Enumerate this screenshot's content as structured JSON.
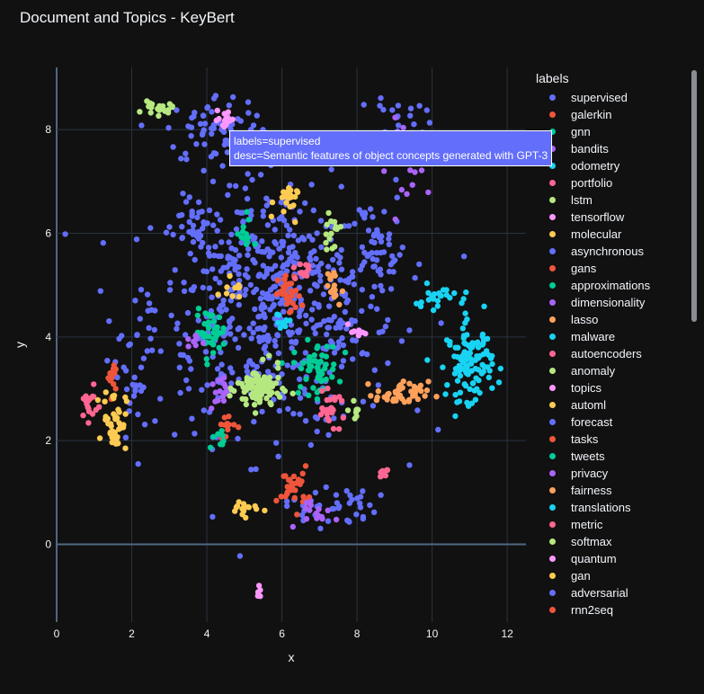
{
  "title": "Document and Topics - KeyBert",
  "legend_title": "labels",
  "tooltip": {
    "line1": "labels=supervised",
    "line2": "desc=Semantic features of object concepts generated with GPT-3"
  },
  "chart_data": {
    "type": "scatter",
    "title": "Document and Topics - KeyBert",
    "xlabel": "x",
    "ylabel": "y",
    "xlim": [
      0,
      12.5
    ],
    "ylim": [
      -1.5,
      9.2
    ],
    "xticks": [
      0,
      2,
      4,
      6,
      8,
      10,
      12
    ],
    "yticks": [
      0,
      2,
      4,
      6,
      8
    ],
    "grid": true,
    "legend_position": "right",
    "series": [
      {
        "name": "supervised",
        "color": "#636efa"
      },
      {
        "name": "galerkin",
        "color": "#ef553b"
      },
      {
        "name": "gnn",
        "color": "#00cc96"
      },
      {
        "name": "bandits",
        "color": "#ab63fa"
      },
      {
        "name": "odometry",
        "color": "#19d3f3"
      },
      {
        "name": "portfolio",
        "color": "#ff6692"
      },
      {
        "name": "lstm",
        "color": "#b6e880"
      },
      {
        "name": "tensorflow",
        "color": "#ff97ff"
      },
      {
        "name": "molecular",
        "color": "#fecb52"
      },
      {
        "name": "asynchronous",
        "color": "#636efa"
      },
      {
        "name": "gans",
        "color": "#ef553b"
      },
      {
        "name": "approximations",
        "color": "#00cc96"
      },
      {
        "name": "dimensionality",
        "color": "#ab63fa"
      },
      {
        "name": "lasso",
        "color": "#ffa15a"
      },
      {
        "name": "malware",
        "color": "#19d3f3"
      },
      {
        "name": "autoencoders",
        "color": "#ff6692"
      },
      {
        "name": "anomaly",
        "color": "#b6e880"
      },
      {
        "name": "topics",
        "color": "#ff97ff"
      },
      {
        "name": "automl",
        "color": "#fecb52"
      },
      {
        "name": "forecast",
        "color": "#636efa"
      },
      {
        "name": "tasks",
        "color": "#ef553b"
      },
      {
        "name": "tweets",
        "color": "#00cc96"
      },
      {
        "name": "privacy",
        "color": "#ab63fa"
      },
      {
        "name": "fairness",
        "color": "#ffa15a"
      },
      {
        "name": "translations",
        "color": "#19d3f3"
      },
      {
        "name": "metric",
        "color": "#ff6692"
      },
      {
        "name": "softmax",
        "color": "#b6e880"
      },
      {
        "name": "quantum",
        "color": "#ff97ff"
      },
      {
        "name": "gan",
        "color": "#fecb52"
      },
      {
        "name": "adversarial",
        "color": "#636efa"
      },
      {
        "name": "rnn2seq",
        "color": "#ef553b"
      }
    ],
    "clusters": [
      {
        "label": "supervised",
        "cx": 5.8,
        "cy": 4.6,
        "sx": 1.6,
        "sy": 1.2,
        "n": 620
      },
      {
        "label": "supervised",
        "cx": 4.3,
        "cy": 8.0,
        "sx": 0.7,
        "sy": 0.35,
        "n": 70
      },
      {
        "label": "supervised",
        "cx": 9.1,
        "cy": 8.1,
        "sx": 0.35,
        "sy": 0.35,
        "n": 40
      },
      {
        "label": "supervised",
        "cx": 8.5,
        "cy": 5.6,
        "sx": 0.35,
        "sy": 0.35,
        "n": 35
      },
      {
        "label": "supervised",
        "cx": 3.7,
        "cy": 6.0,
        "sx": 0.2,
        "sy": 0.4,
        "n": 30
      },
      {
        "label": "supervised",
        "cx": 7.3,
        "cy": 0.75,
        "sx": 0.6,
        "sy": 0.2,
        "n": 40
      },
      {
        "label": "supervised",
        "cx": 2.0,
        "cy": 3.2,
        "sx": 0.3,
        "sy": 0.8,
        "n": 30
      },
      {
        "label": "galerkin",
        "cx": 6.2,
        "cy": 4.8,
        "sx": 0.15,
        "sy": 0.2,
        "n": 35
      },
      {
        "label": "galerkin",
        "cx": 6.3,
        "cy": 1.1,
        "sx": 0.2,
        "sy": 0.2,
        "n": 30
      },
      {
        "label": "galerkin",
        "cx": 1.5,
        "cy": 3.2,
        "sx": 0.07,
        "sy": 0.18,
        "n": 12
      },
      {
        "label": "gnn",
        "cx": 6.9,
        "cy": 3.4,
        "sx": 0.3,
        "sy": 0.25,
        "n": 55
      },
      {
        "label": "gnn",
        "cx": 4.1,
        "cy": 4.1,
        "sx": 0.2,
        "sy": 0.2,
        "n": 40
      },
      {
        "label": "bandits",
        "cx": 9.5,
        "cy": 7.4,
        "sx": 0.35,
        "sy": 0.4,
        "n": 25
      },
      {
        "label": "bandits",
        "cx": 7.0,
        "cy": 0.6,
        "sx": 0.25,
        "sy": 0.15,
        "n": 15
      },
      {
        "label": "odometry",
        "cx": 11.0,
        "cy": 3.5,
        "sx": 0.3,
        "sy": 0.35,
        "n": 110
      },
      {
        "label": "odometry",
        "cx": 10.3,
        "cy": 4.7,
        "sx": 0.4,
        "sy": 0.15,
        "n": 25
      },
      {
        "label": "odometry",
        "cx": 6.0,
        "cy": 4.3,
        "sx": 0.12,
        "sy": 0.12,
        "n": 10
      },
      {
        "label": "portfolio",
        "cx": 0.85,
        "cy": 2.7,
        "sx": 0.12,
        "sy": 0.15,
        "n": 18
      },
      {
        "label": "portfolio",
        "cx": 8.7,
        "cy": 1.4,
        "sx": 0.08,
        "sy": 0.1,
        "n": 8
      },
      {
        "label": "portfolio",
        "cx": 7.3,
        "cy": 2.6,
        "sx": 0.2,
        "sy": 0.15,
        "n": 25
      },
      {
        "label": "lstm",
        "cx": 5.4,
        "cy": 3.0,
        "sx": 0.3,
        "sy": 0.22,
        "n": 90
      },
      {
        "label": "lstm",
        "cx": 2.7,
        "cy": 8.4,
        "sx": 0.2,
        "sy": 0.06,
        "n": 20
      },
      {
        "label": "lstm",
        "cx": 7.3,
        "cy": 6.0,
        "sx": 0.12,
        "sy": 0.15,
        "n": 15
      },
      {
        "label": "tensorflow",
        "cx": 4.5,
        "cy": 8.2,
        "sx": 0.18,
        "sy": 0.1,
        "n": 15
      },
      {
        "label": "tensorflow",
        "cx": 5.4,
        "cy": -0.85,
        "sx": 0.03,
        "sy": 0.1,
        "n": 5
      },
      {
        "label": "molecular",
        "cx": 1.55,
        "cy": 2.4,
        "sx": 0.15,
        "sy": 0.3,
        "n": 45
      },
      {
        "label": "molecular",
        "cx": 5.0,
        "cy": 0.7,
        "sx": 0.25,
        "sy": 0.08,
        "n": 15
      },
      {
        "label": "molecular",
        "cx": 6.1,
        "cy": 6.6,
        "sx": 0.15,
        "sy": 0.18,
        "n": 20
      },
      {
        "label": "gans",
        "cx": 4.5,
        "cy": 2.3,
        "sx": 0.12,
        "sy": 0.15,
        "n": 12
      },
      {
        "label": "approximations",
        "cx": 5.0,
        "cy": 6.0,
        "sx": 0.1,
        "sy": 0.2,
        "n": 12
      },
      {
        "label": "dimensionality",
        "cx": 4.3,
        "cy": 2.9,
        "sx": 0.12,
        "sy": 0.15,
        "n": 15
      },
      {
        "label": "lasso",
        "cx": 9.2,
        "cy": 2.9,
        "sx": 0.35,
        "sy": 0.12,
        "n": 45
      },
      {
        "label": "lasso",
        "cx": 7.3,
        "cy": 4.9,
        "sx": 0.15,
        "sy": 0.2,
        "n": 15
      },
      {
        "label": "autoencoders",
        "cx": 6.6,
        "cy": 5.3,
        "sx": 0.15,
        "sy": 0.12,
        "n": 12
      },
      {
        "label": "anomaly",
        "cx": 8.0,
        "cy": 2.6,
        "sx": 0.1,
        "sy": 0.08,
        "n": 8
      },
      {
        "label": "topics",
        "cx": 8.0,
        "cy": 4.1,
        "sx": 0.1,
        "sy": 0.08,
        "n": 10
      },
      {
        "label": "automl",
        "cx": 4.7,
        "cy": 5.0,
        "sx": 0.12,
        "sy": 0.12,
        "n": 10
      },
      {
        "label": "tweets",
        "cx": 4.3,
        "cy": 2.0,
        "sx": 0.1,
        "sy": 0.1,
        "n": 8
      },
      {
        "label": "privacy",
        "cx": 3.7,
        "cy": 3.9,
        "sx": 0.12,
        "sy": 0.08,
        "n": 8
      }
    ]
  }
}
